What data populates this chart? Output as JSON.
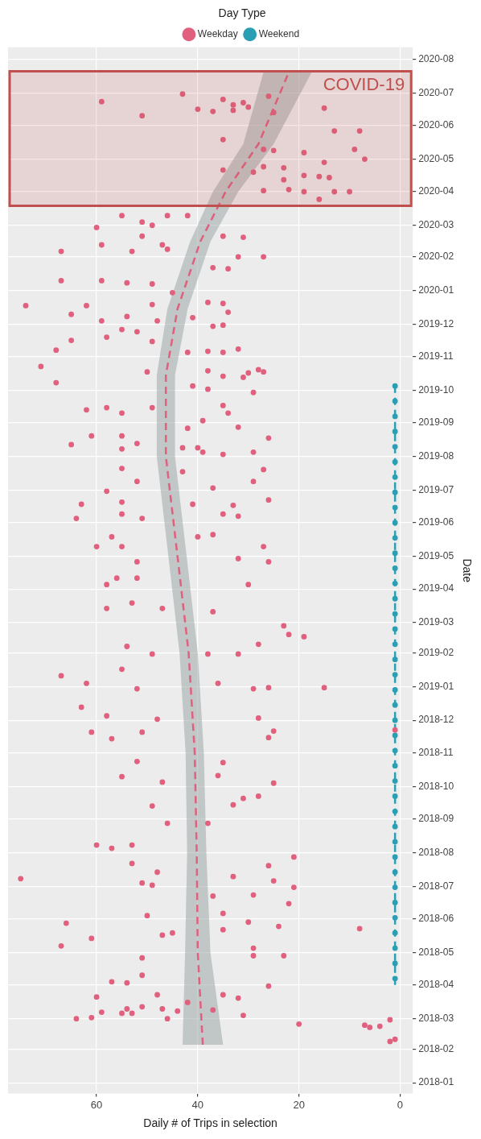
{
  "chart_data": {
    "type": "scatter",
    "orientation": "horizontal",
    "xlabel": "Daily # of Trips in selection",
    "ylabel": "Date",
    "legend_title": "Day Type",
    "legend": "top",
    "grid": true,
    "marker": "circle",
    "ylim": [
      "2017-12-22",
      "2020-08-12"
    ],
    "yticks": [
      "2018-01",
      "2018-02",
      "2018-03",
      "2018-04",
      "2018-05",
      "2018-06",
      "2018-07",
      "2018-08",
      "2018-09",
      "2018-10",
      "2018-11",
      "2018-12",
      "2019-01",
      "2019-02",
      "2019-03",
      "2019-04",
      "2019-05",
      "2019-06",
      "2019-07",
      "2019-08",
      "2019-09",
      "2019-10",
      "2019-11",
      "2019-12",
      "2020-01",
      "2020-02",
      "2020-03",
      "2020-04",
      "2020-05",
      "2020-06",
      "2020-07",
      "2020-08"
    ],
    "xlim": [
      77.5,
      -2.5
    ],
    "xticks": [
      0,
      20,
      40,
      60
    ],
    "bands": [
      {
        "axis": "y",
        "from": "2020-03-19",
        "to": "2020-07-21",
        "label": "COVID-19",
        "color": "#c0504d"
      }
    ],
    "series": [
      {
        "name": "Weekday",
        "color": "#e0607e",
        "x": [
          "2018-02-08",
          "2018-02-10",
          "2018-02-28",
          "2018-02-22",
          "2018-02-21",
          "2018-02-23",
          "2018-02-24",
          "2018-03-01",
          "2018-03-02",
          "2018-03-01",
          "2018-03-04",
          "2018-03-07",
          "2018-03-06",
          "2018-03-10",
          "2018-03-06",
          "2018-03-12",
          "2018-03-10",
          "2018-03-08",
          "2018-03-16",
          "2018-03-09",
          "2018-03-21",
          "2018-03-23",
          "2018-03-23",
          "2018-03-20",
          "2018-03-31",
          "2018-04-04",
          "2018-04-03",
          "2018-04-10",
          "2018-04-28",
          "2018-04-26",
          "2018-04-28",
          "2018-05-07",
          "2018-05-05",
          "2018-05-17",
          "2018-05-14",
          "2018-05-19",
          "2018-05-23",
          "2018-05-25",
          "2018-05-22",
          "2018-05-28",
          "2018-05-29",
          "2018-06-04",
          "2018-06-06",
          "2018-06-15",
          "2018-06-23",
          "2018-06-22",
          "2018-06-30",
          "2018-07-02",
          "2018-07-04",
          "2018-07-06",
          "2018-07-08",
          "2018-07-10",
          "2018-07-14",
          "2018-07-20",
          "2018-07-22",
          "2018-07-28",
          "2018-08-05",
          "2018-08-08",
          "2018-08-08",
          "2018-08-28",
          "2018-08-28",
          "2018-09-13",
          "2018-09-14",
          "2018-09-20",
          "2018-09-22",
          "2018-10-04",
          "2018-10-05",
          "2018-10-10",
          "2018-10-11",
          "2018-10-24",
          "2018-10-23",
          "2018-11-14",
          "2018-11-15",
          "2018-11-20",
          "2018-11-20",
          "2018-11-21",
          "2018-11-22",
          "2018-12-02",
          "2018-12-03",
          "2018-12-05",
          "2018-12-13",
          "2018-12-30",
          "2018-12-30",
          "2018-12-31",
          "2018-12-31",
          "2019-01-04",
          "2019-01-04",
          "2019-01-11",
          "2019-01-17",
          "2019-01-31",
          "2019-01-31",
          "2019-01-31",
          "2019-02-07",
          "2019-02-09",
          "2019-02-16",
          "2019-02-18",
          "2019-02-26",
          "2019-03-11",
          "2019-03-14",
          "2019-03-14",
          "2019-03-19",
          "2019-04-05",
          "2019-04-05",
          "2019-04-11",
          "2019-04-11",
          "2019-04-26",
          "2019-04-26",
          "2019-04-29",
          "2019-05-10",
          "2019-05-10",
          "2019-05-10",
          "2019-05-19",
          "2019-05-21",
          "2019-05-19",
          "2019-06-05",
          "2019-06-07",
          "2019-06-05",
          "2019-06-09",
          "2019-06-09",
          "2019-06-18",
          "2019-06-20",
          "2019-06-18",
          "2019-06-17",
          "2019-06-22",
          "2019-06-30",
          "2019-07-03",
          "2019-07-09",
          "2019-07-09",
          "2019-07-20",
          "2019-07-21",
          "2019-07-18",
          "2019-08-03",
          "2019-08-05",
          "2019-08-05",
          "2019-08-12",
          "2019-08-13",
          "2019-08-09",
          "2019-08-08",
          "2019-08-09",
          "2019-08-20",
          "2019-08-20",
          "2019-08-18",
          "2019-09-03",
          "2019-08-27",
          "2019-08-28",
          "2019-09-13",
          "2019-09-15",
          "2019-09-15",
          "2019-09-17",
          "2019-09-10",
          "2019-09-10",
          "2019-10-08",
          "2019-10-14",
          "2019-10-13",
          "2019-10-05",
          "2019-10-02",
          "2019-09-29",
          "2019-10-23",
          "2019-10-20",
          "2019-10-18",
          "2019-10-19",
          "2019-10-17",
          "2019-10-18",
          "2019-11-07",
          "2019-11-05",
          "2019-11-06",
          "2019-11-08",
          "2019-11-05",
          "2019-11-19",
          "2019-11-15",
          "2019-11-16",
          "2019-11-29",
          "2019-11-30",
          "2019-11-26",
          "2019-11-24",
          "2019-12-10",
          "2019-12-04",
          "2019-12-12",
          "2019-12-08",
          "2019-12-04",
          "2019-12-07",
          "2019-12-18",
          "2019-12-18",
          "2019-12-21",
          "2019-12-20",
          "2019-12-19",
          "2019-12-30",
          "2020-01-10",
          "2020-01-10",
          "2020-01-07",
          "2020-01-08",
          "2020-01-22",
          "2020-01-21",
          "2020-02-01",
          "2020-02-06",
          "2020-02-06",
          "2020-02-01",
          "2020-02-12",
          "2020-02-12",
          "2020-02-08",
          "2020-02-20",
          "2020-02-20",
          "2020-02-19",
          "2020-02-28",
          "2020-03-01",
          "2020-03-04",
          "2020-03-10",
          "2020-03-10",
          "2020-03-10",
          "2020-03-25",
          "2020-04-01",
          "2020-04-02",
          "2020-04-03",
          "2020-04-01",
          "2020-04-01",
          "2020-04-16",
          "2020-04-15",
          "2020-04-14",
          "2020-04-12",
          "2020-04-21",
          "2020-04-19",
          "2020-04-24",
          "2020-04-23",
          "2020-04-28",
          "2020-05-07",
          "2020-05-10",
          "2020-05-01",
          "2020-05-09",
          "2020-05-10",
          "2020-05-19",
          "2020-05-27",
          "2020-05-27",
          "2020-06-10",
          "2020-06-16",
          "2020-06-17",
          "2020-06-14",
          "2020-06-25",
          "2020-06-20",
          "2020-06-22",
          "2020-06-15",
          "2020-06-18",
          "2020-06-23",
          "2020-06-28",
          "2020-06-13",
          "2020-06-30"
        ],
        "values": [
          2,
          1,
          2,
          4,
          6,
          7,
          20,
          64,
          61,
          46,
          31,
          59,
          55,
          54,
          53,
          51,
          47,
          44,
          42,
          37,
          60,
          48,
          35,
          32,
          26,
          57,
          54,
          51,
          23,
          51,
          29,
          67,
          29,
          47,
          61,
          45,
          8,
          24,
          35,
          66,
          30,
          50,
          35,
          22,
          29,
          37,
          21,
          49,
          51,
          25,
          75,
          33,
          48,
          26,
          53,
          21,
          57,
          60,
          53,
          46,
          38,
          49,
          33,
          31,
          28,
          25,
          47,
          55,
          36,
          52,
          35,
          57,
          26,
          61,
          51,
          25,
          1,
          48,
          28,
          58,
          63,
          52,
          29,
          26,
          15,
          62,
          36,
          67,
          55,
          49,
          32,
          38,
          54,
          28,
          19,
          22,
          23,
          37,
          58,
          47,
          53,
          58,
          30,
          56,
          52,
          26,
          52,
          32,
          27,
          55,
          60,
          57,
          37,
          40,
          64,
          32,
          51,
          55,
          35,
          63,
          55,
          41,
          33,
          26,
          58,
          37,
          52,
          29,
          27,
          55,
          43,
          35,
          29,
          39,
          65,
          52,
          43,
          55,
          40,
          61,
          55,
          26,
          39,
          42,
          32,
          62,
          58,
          49,
          35,
          55,
          34,
          68,
          35,
          31,
          41,
          38,
          29,
          71,
          28,
          27,
          38,
          30,
          50,
          68,
          42,
          38,
          32,
          35,
          58,
          49,
          65,
          37,
          35,
          55,
          52,
          65,
          59,
          34,
          54,
          48,
          41,
          74,
          62,
          38,
          35,
          49,
          45,
          67,
          59,
          49,
          54,
          37,
          34,
          27,
          67,
          53,
          32,
          59,
          47,
          46,
          51,
          35,
          31,
          60,
          49,
          51,
          55,
          46,
          42,
          16,
          19,
          27,
          22,
          13,
          10,
          19,
          16,
          14,
          23,
          35,
          29,
          27,
          23,
          15,
          19,
          9,
          7,
          25,
          27,
          35,
          13,
          8,
          51,
          40,
          15,
          37,
          35,
          33,
          31,
          33,
          30,
          59,
          26,
          25,
          43
        ]
      },
      {
        "name": "Weekend",
        "color": "#2a9fb3",
        "x": [
          "2018-04-07",
          "2018-04-21",
          "2018-05-05",
          "2018-05-19",
          "2018-06-02",
          "2018-06-16",
          "2018-06-30",
          "2018-07-14",
          "2018-07-28",
          "2018-08-11",
          "2018-08-25",
          "2018-09-08",
          "2018-09-22",
          "2018-10-06",
          "2018-10-20",
          "2018-11-03",
          "2018-11-17",
          "2018-12-01",
          "2018-12-15",
          "2018-12-29",
          "2019-01-12",
          "2019-01-26",
          "2019-02-09",
          "2019-02-23",
          "2019-03-09",
          "2019-03-23",
          "2019-04-06",
          "2019-04-20",
          "2019-05-04",
          "2019-05-18",
          "2019-06-01",
          "2019-06-15",
          "2019-06-29",
          "2019-07-13",
          "2019-07-27",
          "2019-08-10",
          "2019-08-24",
          "2019-09-07",
          "2019-09-21",
          "2019-10-05"
        ],
        "values": [
          1,
          1,
          1,
          1,
          1,
          1,
          1,
          1,
          1,
          1,
          1,
          1,
          1,
          1,
          1,
          1,
          1,
          1,
          1,
          1,
          1,
          1,
          1,
          1,
          1,
          1,
          1,
          1,
          1,
          1,
          1,
          1,
          1,
          1,
          1,
          1,
          1,
          1,
          1,
          1
        ]
      },
      {
        "type": "line",
        "marker": "none",
        "line_style": "dashed",
        "color": "#e0607e",
        "x": [
          "2018-02-05",
          "2018-05-01",
          "2018-08-01",
          "2018-11-01",
          "2019-02-01",
          "2019-05-01",
          "2019-08-01",
          "2019-10-15",
          "2019-12-15",
          "2020-02-15",
          "2020-04-01",
          "2020-05-15",
          "2020-07-20"
        ],
        "values": [
          39,
          40,
          40.2,
          40.6,
          41.8,
          44,
          46.3,
          46.3,
          44,
          39.5,
          34.5,
          28,
          22
        ],
        "lower": [
          35,
          37.5,
          38.3,
          38.8,
          40,
          42.2,
          44.5,
          44.5,
          42,
          37.5,
          32,
          25,
          17.5
        ],
        "upper": [
          43,
          42.5,
          42.1,
          42.4,
          43.6,
          45.8,
          48.1,
          48.1,
          46,
          41.5,
          37,
          31,
          27
        ]
      },
      {
        "type": "line",
        "marker": "none",
        "line_style": "dashed",
        "color": "#2a9fb3",
        "x": [
          "2018-04-01",
          "2019-10-05"
        ],
        "values": [
          1,
          1
        ]
      }
    ]
  }
}
